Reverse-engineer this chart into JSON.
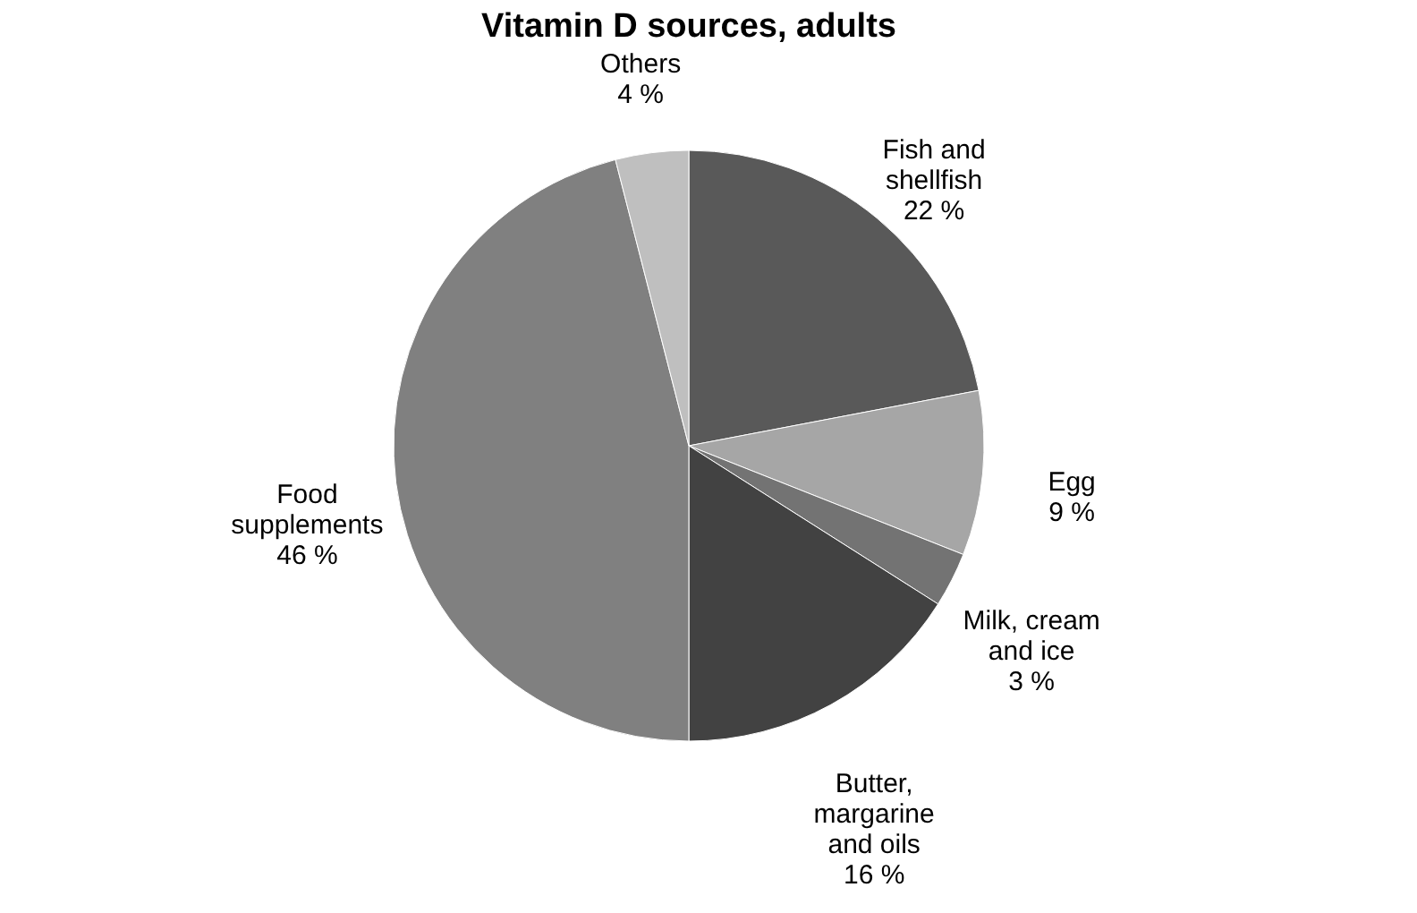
{
  "chart_data": {
    "type": "pie",
    "title": "Vitamin D sources, adults",
    "categories": [
      "Fish and shellfish",
      "Egg",
      "Milk, cream and ice",
      "Butter, margarine and oils",
      "Food supplements",
      "Others"
    ],
    "values": [
      22,
      9,
      3,
      16,
      46,
      4
    ],
    "colors": [
      "#595959",
      "#a6a6a6",
      "#737373",
      "#424242",
      "#808080",
      "#bfbfbf"
    ],
    "value_labels": [
      "22 %",
      "9 %",
      "3 %",
      "16 %",
      "46 %",
      "4 %"
    ],
    "legend": false
  }
}
